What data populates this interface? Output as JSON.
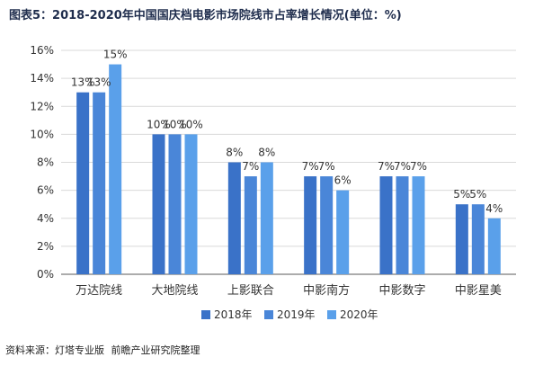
{
  "title": "图表5：2018-2020年中国国庆档电影市场院线市占率增长情况(单位：%)",
  "footer": {
    "source": "资料来源：灯塔专业版",
    "publisher": "前瞻产业研究院整理"
  },
  "colors": {
    "2018年": "#3a72c8",
    "2019年": "#4a86d8",
    "2020年": "#5aa0ea",
    "grid": "#d9d9d9",
    "axis": "#595959"
  },
  "chart_data": {
    "type": "bar",
    "title": "图表5：2018-2020年中国国庆档电影市场院线市占率增长情况(单位：%)",
    "xlabel": "",
    "ylabel": "",
    "ylim": [
      0,
      16
    ],
    "yticks": [
      0,
      2,
      4,
      6,
      8,
      10,
      12,
      14,
      16
    ],
    "ytick_labels": [
      "0%",
      "2%",
      "4%",
      "6%",
      "8%",
      "10%",
      "12%",
      "14%",
      "16%"
    ],
    "grid": "horizontal",
    "legend": "bottom-center",
    "categories": [
      "万达院线",
      "大地院线",
      "上影联合",
      "中影南方",
      "中影数字",
      "中影星美"
    ],
    "series": [
      {
        "name": "2018年",
        "values": [
          13,
          10,
          8,
          7,
          7,
          5
        ],
        "labels": [
          "13%",
          "10%",
          "8%",
          "7%",
          "7%",
          "5%"
        ]
      },
      {
        "name": "2019年",
        "values": [
          13,
          10,
          7,
          7,
          7,
          5
        ],
        "labels": [
          "13%",
          "10%",
          "7%",
          "7%",
          "7%",
          "5%"
        ]
      },
      {
        "name": "2020年",
        "values": [
          15,
          10,
          8,
          6,
          7,
          4
        ],
        "labels": [
          "15%",
          "10%",
          "8%",
          "6%",
          "7%",
          "4%"
        ]
      }
    ]
  }
}
